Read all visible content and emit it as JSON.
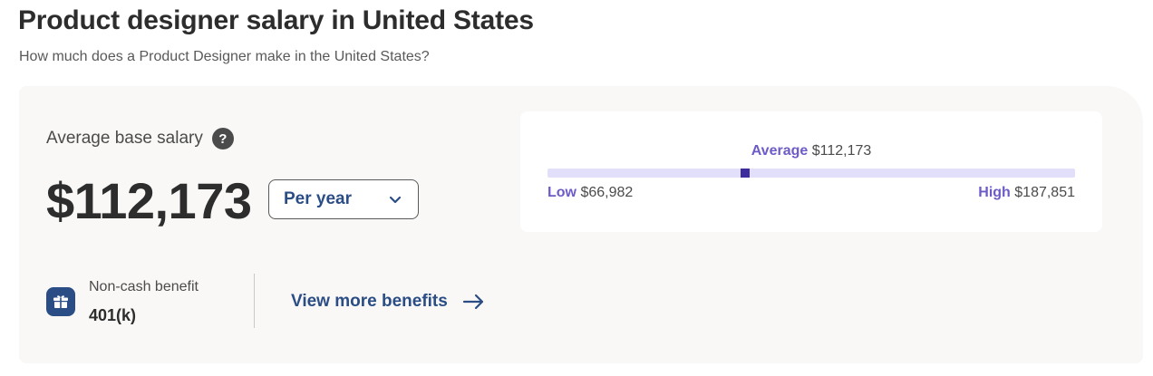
{
  "header": {
    "title": "Product designer salary in United States",
    "subtitle": "How much does a Product Designer make in the United States?"
  },
  "salary": {
    "label": "Average base salary",
    "help_icon": "question-circle-icon",
    "help_glyph": "?",
    "amount": "$112,173",
    "period": {
      "selected": "Per year",
      "icon": "chevron-down-icon"
    }
  },
  "range": {
    "average_key": "Average",
    "average_value": "$112,173",
    "low_key": "Low",
    "low_value": "$66,982",
    "high_key": "High",
    "high_value": "$187,851",
    "low_number": 66982,
    "average_number": 112173,
    "high_number": 187851
  },
  "benefits": {
    "icon": "gift-icon",
    "label": "Non-cash benefit",
    "value": "401(k)",
    "link_label": "View more benefits",
    "link_icon": "arrow-right-icon"
  },
  "colors": {
    "brand_blue": "#2b4d85",
    "accent_purple": "#6e5bc8",
    "marker_purple": "#3c2c9e",
    "bar_track": "#e1dffa",
    "card_bg": "#f9f8f6"
  }
}
